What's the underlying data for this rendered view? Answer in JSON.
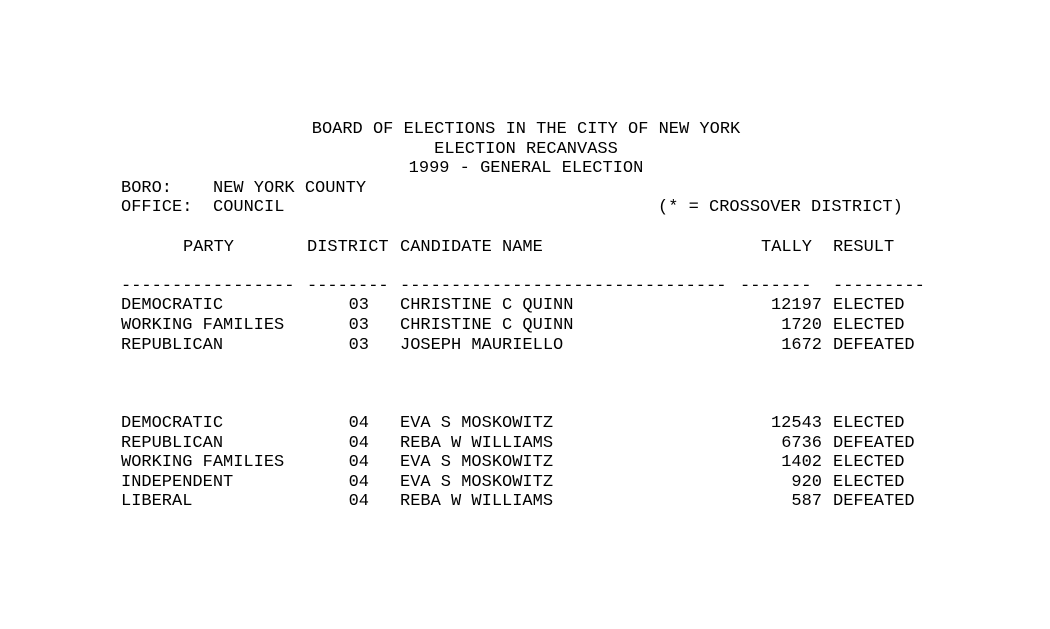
{
  "header": {
    "line1": "BOARD OF ELECTIONS IN THE CITY OF NEW YORK",
    "line2": "ELECTION RECANVASS",
    "line3": "1999 - GENERAL ELECTION"
  },
  "meta": {
    "boro_label": "BORO:",
    "boro_value": "NEW YORK COUNTY",
    "office_label": "OFFICE:",
    "office_value": "COUNCIL",
    "crossover_note": "(* = CROSSOVER DISTRICT)"
  },
  "columns": {
    "party": "PARTY",
    "district": "DISTRICT",
    "candidate": "CANDIDATE NAME",
    "tally": "TALLY",
    "result": "RESULT"
  },
  "separators": {
    "party": "-----------------",
    "district": "--------",
    "candidate": "--------------------------------",
    "tally": "-------",
    "result": "---------"
  },
  "groups": [
    {
      "rows": [
        {
          "party": "DEMOCRATIC",
          "district": "03",
          "candidate": "CHRISTINE C QUINN",
          "tally": "12197",
          "result": "ELECTED"
        },
        {
          "party": "WORKING FAMILIES",
          "district": "03",
          "candidate": "CHRISTINE C QUINN",
          "tally": "1720",
          "result": "ELECTED"
        },
        {
          "party": "REPUBLICAN",
          "district": "03",
          "candidate": "JOSEPH MAURIELLO",
          "tally": "1672",
          "result": "DEFEATED"
        }
      ]
    },
    {
      "rows": [
        {
          "party": "DEMOCRATIC",
          "district": "04",
          "candidate": "EVA S MOSKOWITZ",
          "tally": "12543",
          "result": "ELECTED"
        },
        {
          "party": "REPUBLICAN",
          "district": "04",
          "candidate": "REBA W WILLIAMS",
          "tally": "6736",
          "result": "DEFEATED"
        },
        {
          "party": "WORKING FAMILIES",
          "district": "04",
          "candidate": "EVA S MOSKOWITZ",
          "tally": "1402",
          "result": "ELECTED"
        },
        {
          "party": "INDEPENDENT",
          "district": "04",
          "candidate": "EVA S MOSKOWITZ",
          "tally": "920",
          "result": "ELECTED"
        },
        {
          "party": "LIBERAL",
          "district": "04",
          "candidate": "REBA W WILLIAMS",
          "tally": "587",
          "result": "DEFEATED"
        }
      ]
    }
  ]
}
